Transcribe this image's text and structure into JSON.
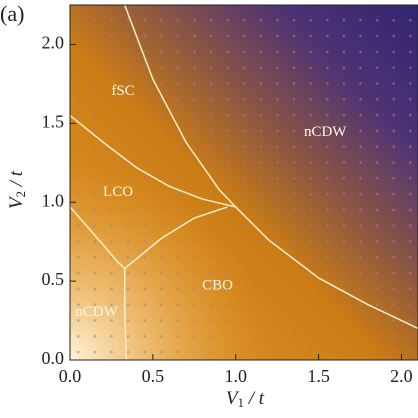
{
  "chart_data": {
    "type": "phase",
    "panel_label": "(a)",
    "x_label": [
      "V",
      "1",
      " / t"
    ],
    "y_label": [
      "V",
      "2",
      " / t"
    ],
    "xlim": [
      0,
      2.1
    ],
    "ylim": [
      0,
      2.25
    ],
    "xticks": [
      {
        "value": 0,
        "label": "0.0"
      },
      {
        "value": 0.5,
        "label": "0.5"
      },
      {
        "value": 1,
        "label": "1.0"
      },
      {
        "value": 1.5,
        "label": "1.5"
      },
      {
        "value": 2,
        "label": "2.0"
      }
    ],
    "yticks": [
      {
        "value": 0,
        "label": "0.0"
      },
      {
        "value": 0.5,
        "label": "0.5"
      },
      {
        "value": 1,
        "label": "1.0"
      },
      {
        "value": 1.5,
        "label": "1.5"
      },
      {
        "value": 2,
        "label": "2.0"
      }
    ],
    "line_color": "#fbefc8",
    "boundaries": [
      {
        "x": [
          0.33,
          0.5,
          0.7,
          0.9,
          1.0,
          1.2,
          1.5,
          1.8,
          2.1
        ],
        "y": [
          2.25,
          1.78,
          1.38,
          1.08,
          0.97,
          0.76,
          0.52,
          0.35,
          0.2
        ]
      },
      {
        "x": [
          0,
          0.2,
          0.4,
          0.6,
          0.8,
          1.0
        ],
        "y": [
          1.55,
          1.38,
          1.22,
          1.1,
          1.02,
          0.97
        ]
      },
      {
        "x": [
          0,
          0.1,
          0.2,
          0.28,
          0.33
        ],
        "y": [
          0.97,
          0.85,
          0.73,
          0.63,
          0.58
        ]
      },
      {
        "x": [
          0.33,
          0.4,
          0.55,
          0.75,
          0.95
        ],
        "y": [
          0.58,
          0.64,
          0.77,
          0.9,
          0.97
        ]
      },
      {
        "x": [
          0.33,
          0.33,
          0.34
        ],
        "y": [
          0.58,
          0.3,
          0
        ]
      }
    ],
    "regions": [
      {
        "label": "fSC",
        "x": 0.32,
        "y": 1.7
      },
      {
        "label": "nCDW",
        "x": 1.54,
        "y": 1.44
      },
      {
        "label": "LCO",
        "x": 0.29,
        "y": 1.06
      },
      {
        "label": "CBO",
        "x": 0.89,
        "y": 0.47
      },
      {
        "label": "nCDW",
        "x": 0.16,
        "y": 0.3
      }
    ]
  }
}
